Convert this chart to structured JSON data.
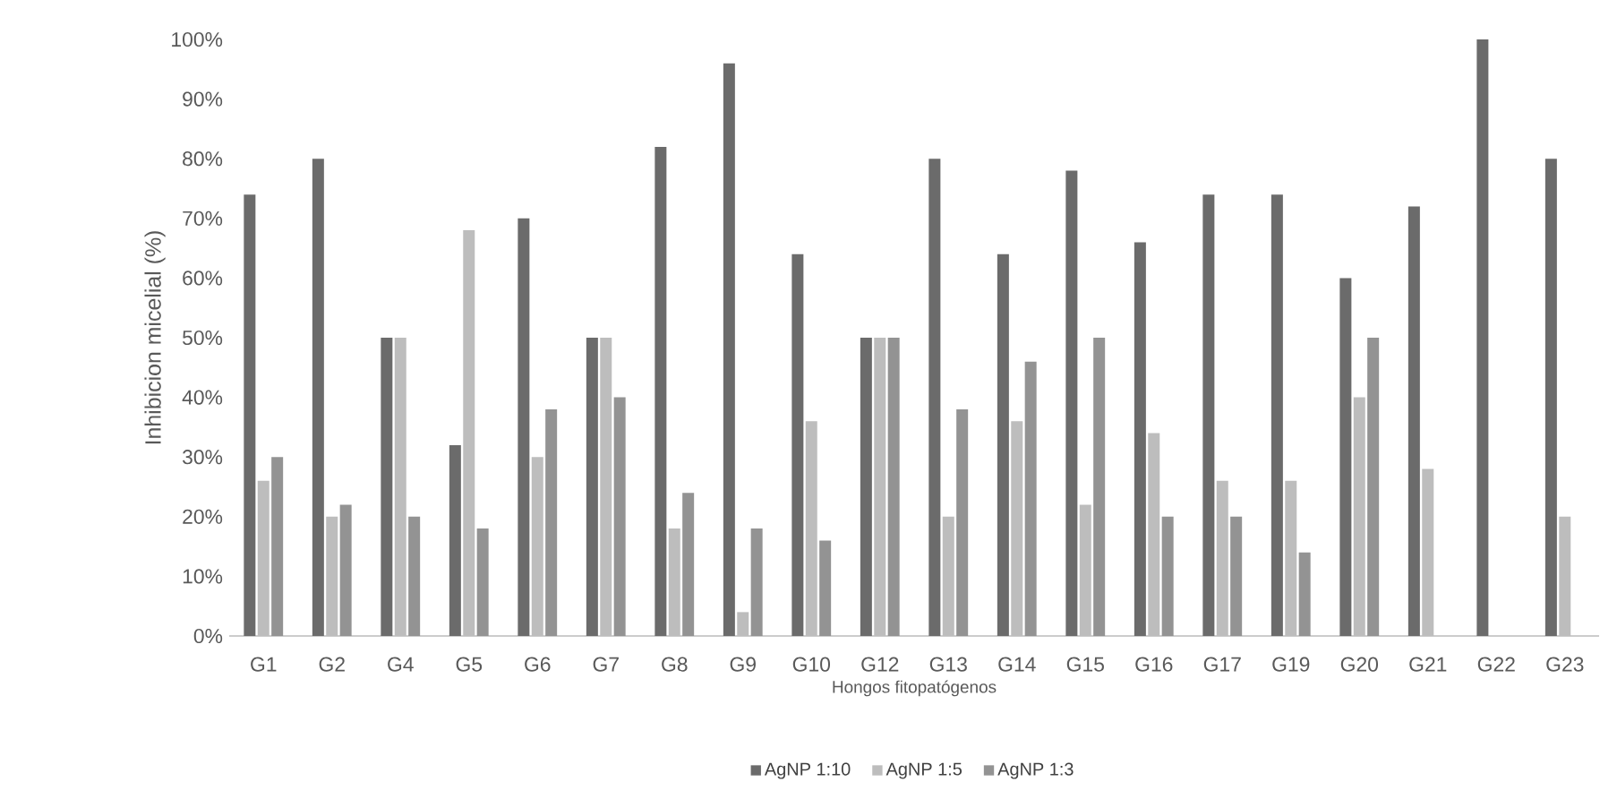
{
  "chart_data": {
    "type": "bar",
    "xlabel": "Hongos fitopatógenos",
    "ylabel": "Inhibicion micelial  (%)",
    "categories": [
      "G1",
      "G2",
      "G4",
      "G5",
      "G6",
      "G7",
      "G8",
      "G9",
      "G10",
      "G12",
      "G13",
      "G14",
      "G15",
      "G16",
      "G17",
      "G19",
      "G20",
      "G21",
      "G22",
      "G23"
    ],
    "series": [
      {
        "name": "AgNP 1:10",
        "color": "#6b6b6b",
        "values": [
          74,
          80,
          50,
          32,
          70,
          50,
          82,
          96,
          64,
          50,
          80,
          64,
          78,
          66,
          74,
          74,
          60,
          72,
          100,
          80
        ]
      },
      {
        "name": "AgNP 1:5",
        "color": "#bdbdbd",
        "values": [
          26,
          20,
          50,
          68,
          30,
          50,
          18,
          4,
          36,
          50,
          20,
          36,
          22,
          34,
          26,
          26,
          40,
          28,
          null,
          20
        ]
      },
      {
        "name": "AgNP 1:3",
        "color": "#939393",
        "values": [
          30,
          22,
          20,
          18,
          38,
          40,
          24,
          18,
          16,
          50,
          38,
          46,
          50,
          20,
          20,
          14,
          50,
          null,
          null,
          null
        ]
      }
    ],
    "ylim": [
      0,
      100
    ],
    "yticks": [
      {
        "value": 0,
        "label": "0%"
      },
      {
        "value": 10,
        "label": "10%"
      },
      {
        "value": 20,
        "label": "20%"
      },
      {
        "value": 30,
        "label": "30%"
      },
      {
        "value": 40,
        "label": "40%"
      },
      {
        "value": 50,
        "label": "50%"
      },
      {
        "value": 60,
        "label": "60%"
      },
      {
        "value": 70,
        "label": "70%"
      },
      {
        "value": 80,
        "label": "80%"
      },
      {
        "value": 90,
        "label": "90%"
      },
      {
        "value": 100,
        "label": "100%"
      }
    ],
    "legend": "bottom",
    "grid": false
  }
}
